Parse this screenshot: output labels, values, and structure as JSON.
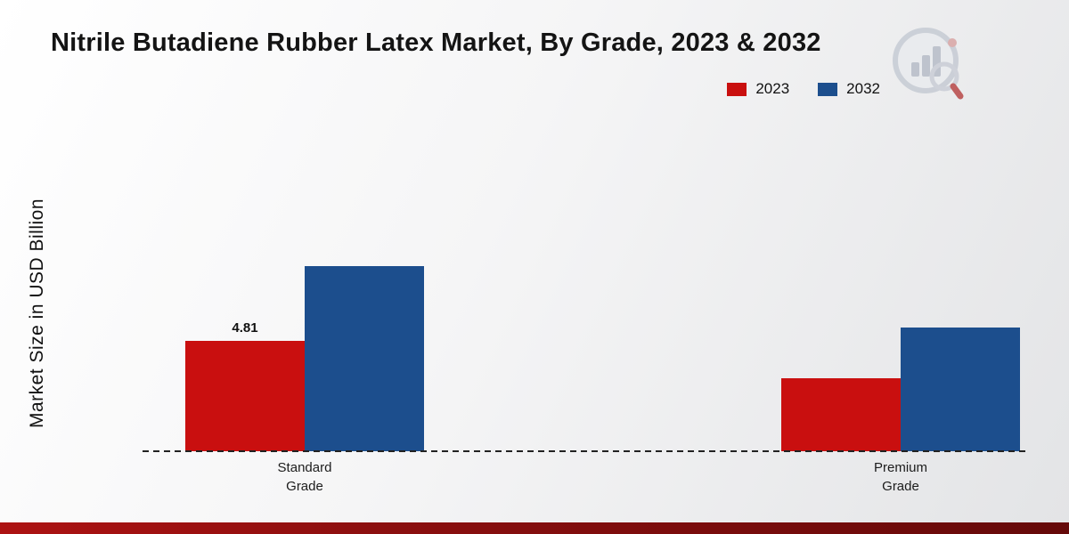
{
  "page": {
    "title": "Nitrile Butadiene Rubber Latex Market, By Grade, 2023 & 2032"
  },
  "chart_data": {
    "type": "bar",
    "title": "Nitrile Butadiene Rubber Latex Market, By Grade, 2023 & 2032",
    "categories": [
      "Standard Grade",
      "Premium Grade"
    ],
    "series": [
      {
        "name": "2023",
        "color": "#c90f0f",
        "values": [
          4.81,
          3.2
        ],
        "data_labels": [
          "4.81",
          ""
        ]
      },
      {
        "name": "2032",
        "color": "#1c4e8d",
        "values": [
          8.1,
          5.4
        ],
        "data_labels": [
          "",
          ""
        ]
      }
    ],
    "xlabel": "",
    "ylabel": "Market Size in USD Billion",
    "ylim": [
      0,
      14
    ],
    "grid": false,
    "legend_position": "top-right",
    "baseline_style": "dashed"
  },
  "colors": {
    "accent_red": "#c90f0f",
    "accent_blue": "#1c4e8d",
    "bottom_band": "#8c0f0f",
    "background_start": "#ffffff",
    "background_end": "#e3e4e6"
  },
  "icons": {
    "logo": "bar-chart-magnifier-logo"
  }
}
